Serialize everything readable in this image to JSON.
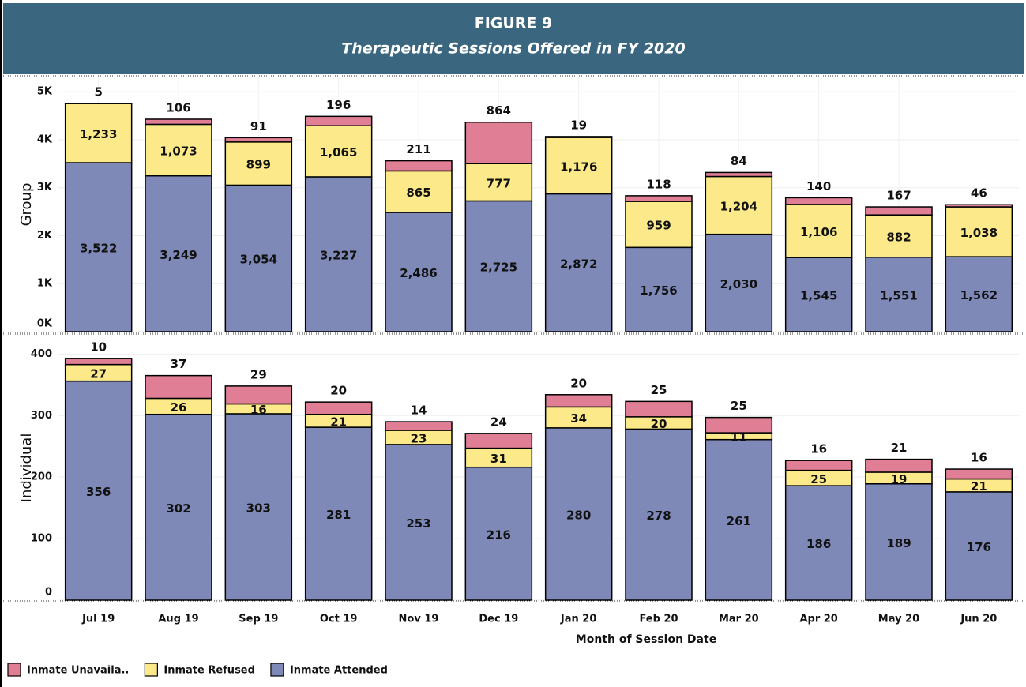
{
  "header": {
    "title": "FIGURE 9",
    "subtitle": "Therapeutic Sessions Offered in FY 2020"
  },
  "chart_data": [
    {
      "type": "bar",
      "stacked": true,
      "y_label": "Group",
      "ylim": [
        0,
        5300
      ],
      "yticks": [
        {
          "value": 0,
          "label": "0K"
        },
        {
          "value": 1000,
          "label": "1K"
        },
        {
          "value": 2000,
          "label": "2K"
        },
        {
          "value": 3000,
          "label": "3K"
        },
        {
          "value": 4000,
          "label": "4K"
        },
        {
          "value": 5000,
          "label": "5K"
        }
      ],
      "grid": true,
      "series": [
        {
          "name": "Inmate Attended",
          "color": "#7f89b8",
          "values": [
            3522,
            3249,
            3054,
            3227,
            2486,
            2725,
            2872,
            1756,
            2030,
            1545,
            1551,
            1562
          ],
          "value_labels": [
            "3,522",
            "3,249",
            "3,054",
            "3,227",
            "2,486",
            "2,725",
            "2,872",
            "1,756",
            "2,030",
            "1,545",
            "1,551",
            "1,562"
          ]
        },
        {
          "name": "Inmate Refused",
          "color": "#fce98a",
          "values": [
            1233,
            1073,
            899,
            1065,
            865,
            777,
            1176,
            959,
            1204,
            1106,
            882,
            1038
          ],
          "value_labels": [
            "1,233",
            "1,073",
            "899",
            "1,065",
            "865",
            "777",
            "1,176",
            "959",
            "1,204",
            "1,106",
            "882",
            "1,038"
          ]
        },
        {
          "name": "Inmate Unavaila..",
          "color": "#e07e95",
          "values": [
            5,
            106,
            91,
            196,
            211,
            864,
            19,
            118,
            84,
            140,
            167,
            46
          ]
        }
      ]
    },
    {
      "type": "bar",
      "stacked": true,
      "y_label": "Individual",
      "x_label": "Month of Session Date",
      "categories": [
        "Jul 19",
        "Aug 19",
        "Sep 19",
        "Oct 19",
        "Nov 19",
        "Dec 19",
        "Jan 20",
        "Feb 20",
        "Mar 20",
        "Apr 20",
        "May 20",
        "Jun 20"
      ],
      "ylim": [
        0,
        430
      ],
      "yticks": [
        0,
        100,
        200,
        300,
        400
      ],
      "grid": true,
      "series": [
        {
          "color": "#7f89b8",
          "values": [
            356,
            302,
            303,
            281,
            253,
            216,
            280,
            278,
            261,
            186,
            189,
            176
          ]
        },
        {
          "color": "#fce98a",
          "values": [
            27,
            26,
            16,
            21,
            23,
            31,
            34,
            20,
            11,
            25,
            19,
            21
          ]
        },
        {
          "color": "#e07e95",
          "values": [
            10,
            37,
            29,
            20,
            14,
            24,
            20,
            25,
            25,
            16,
            21,
            16
          ]
        }
      ]
    }
  ]
}
